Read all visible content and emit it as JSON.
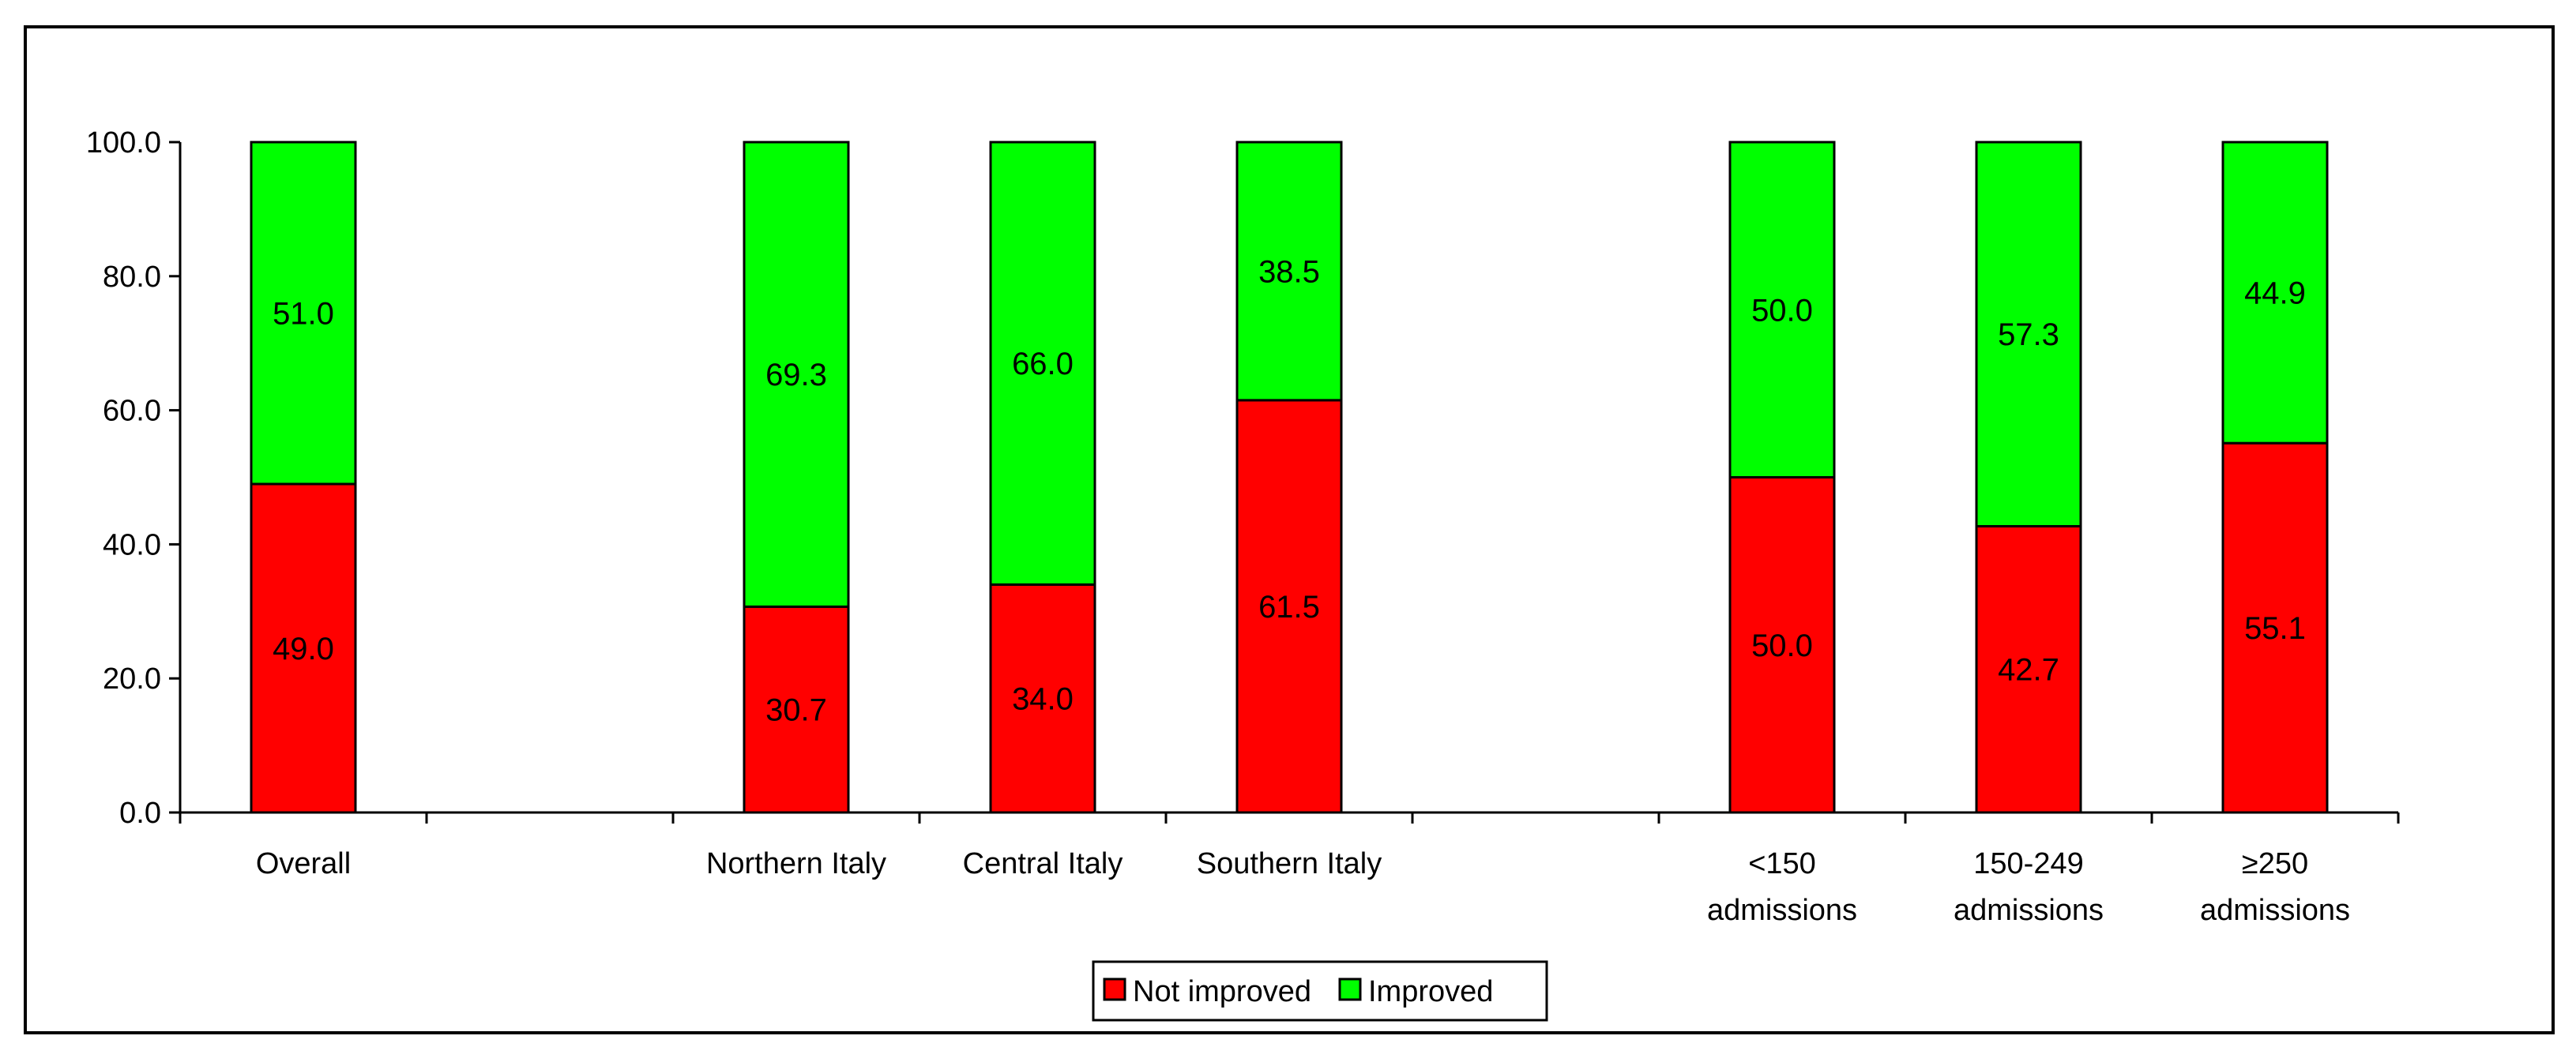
{
  "chart_data": {
    "type": "bar",
    "stacked": true,
    "title": "",
    "xlabel": "",
    "ylabel": "",
    "ylim": [
      0,
      100
    ],
    "yticks": [
      "0.0",
      "20.0",
      "40.0",
      "60.0",
      "80.0",
      "100.0"
    ],
    "categories": [
      {
        "lines": [
          "Overall"
        ]
      },
      {
        "lines": [
          ""
        ]
      },
      {
        "lines": [
          "Northern Italy"
        ]
      },
      {
        "lines": [
          "Central Italy"
        ]
      },
      {
        "lines": [
          "Southern Italy"
        ]
      },
      {
        "lines": [
          ""
        ]
      },
      {
        "lines": [
          "<150",
          "admissions"
        ]
      },
      {
        "lines": [
          "150-249",
          "admissions"
        ]
      },
      {
        "lines": [
          "≥250",
          "admissions"
        ]
      }
    ],
    "series": [
      {
        "name": "Not improved",
        "color": "#ff0000",
        "values": [
          49.0,
          null,
          30.7,
          34.0,
          61.5,
          null,
          50.0,
          42.7,
          55.1
        ],
        "labels": [
          "49.0",
          "",
          "30.7",
          "34.0",
          "61.5",
          "",
          "50.0",
          "42.7",
          "55.1"
        ]
      },
      {
        "name": "Improved",
        "color": "#00ff00",
        "values": [
          51.0,
          null,
          69.3,
          66.0,
          38.5,
          null,
          50.0,
          57.3,
          44.9
        ],
        "labels": [
          "51.0",
          "",
          "69.3",
          "66.0",
          "38.5",
          "",
          "50.0",
          "57.3",
          "44.9"
        ]
      }
    ],
    "legend": {
      "position": "bottom-center",
      "items": [
        "Not improved",
        "Improved"
      ]
    }
  }
}
